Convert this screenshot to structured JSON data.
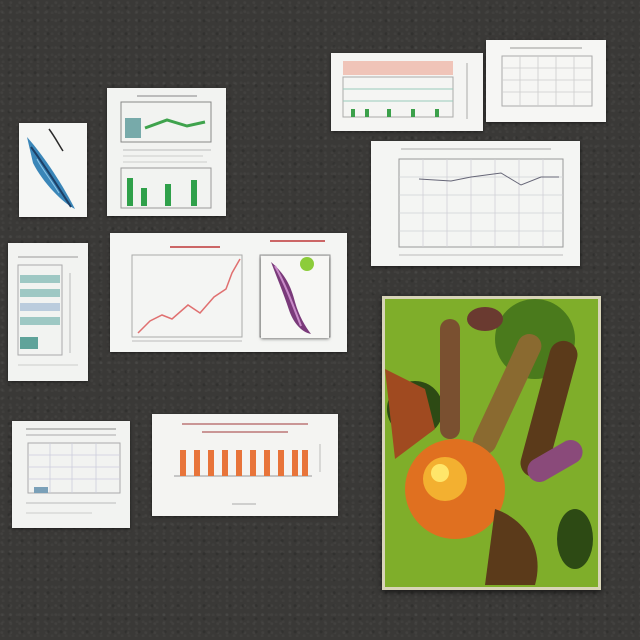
{
  "scene": {
    "background_color": "#3a3937",
    "photo_palette": {
      "green": "#7fae2a",
      "brown": "#5b3a1a",
      "orange": "#e07020",
      "purple": "#8a4a7a"
    }
  },
  "cards": [
    {
      "name": "card-leaf-illustration",
      "icon": "leaf-illustration"
    },
    {
      "name": "card-doc-green-bars",
      "icon": "document-chart"
    },
    {
      "name": "card-doc-table-left",
      "icon": "document-table"
    },
    {
      "name": "card-line-chart-pink",
      "icon": "line-chart"
    },
    {
      "name": "card-purple-specimen",
      "icon": "specimen-illustration"
    },
    {
      "name": "card-doc-grid-bottom-left",
      "icon": "document-grid"
    },
    {
      "name": "card-orange-bar-chart",
      "icon": "bar-chart"
    },
    {
      "name": "card-top-table-chart",
      "icon": "table-chart"
    },
    {
      "name": "card-top-right-grid",
      "icon": "document-grid"
    },
    {
      "name": "card-large-grid-chart",
      "icon": "grid-chart"
    },
    {
      "name": "photo-organic-collage",
      "icon": "photo"
    }
  ]
}
